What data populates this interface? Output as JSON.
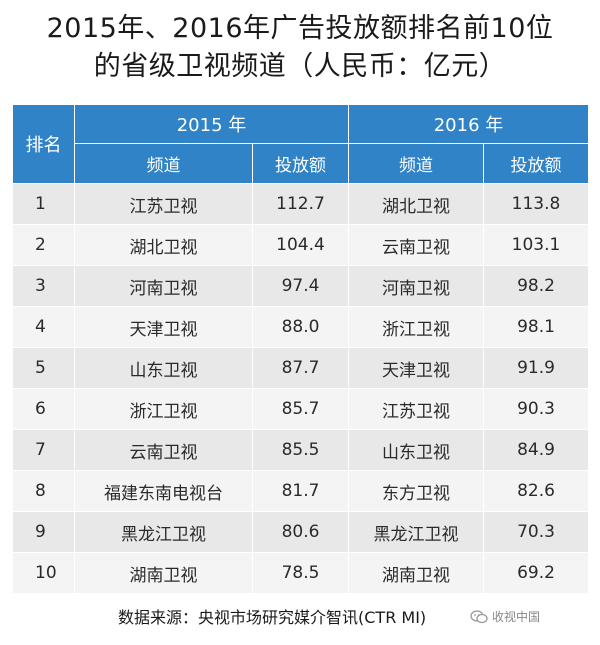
{
  "title": {
    "line1": "2015年、2016年广告投放额排名前10位",
    "line2": "的省级卫视频道（人民币：亿元）"
  },
  "table": {
    "rank_header": "排名",
    "years": [
      "2015 年",
      "2016 年"
    ],
    "channel_header": "频道",
    "amount_header": "投放额",
    "rows": [
      {
        "rank": "1",
        "ch2015": "江苏卫视",
        "amt2015": "112.7",
        "ch2016": "湖北卫视",
        "amt2016": "113.8"
      },
      {
        "rank": "2",
        "ch2015": "湖北卫视",
        "amt2015": "104.4",
        "ch2016": "云南卫视",
        "amt2016": "103.1"
      },
      {
        "rank": "3",
        "ch2015": "河南卫视",
        "amt2015": "97.4",
        "ch2016": "河南卫视",
        "amt2016": "98.2"
      },
      {
        "rank": "4",
        "ch2015": "天津卫视",
        "amt2015": "88.0",
        "ch2016": "浙江卫视",
        "amt2016": "98.1"
      },
      {
        "rank": "5",
        "ch2015": "山东卫视",
        "amt2015": "87.7",
        "ch2016": "天津卫视",
        "amt2016": "91.9"
      },
      {
        "rank": "6",
        "ch2015": "浙江卫视",
        "amt2015": "85.7",
        "ch2016": "江苏卫视",
        "amt2016": "90.3"
      },
      {
        "rank": "7",
        "ch2015": "云南卫视",
        "amt2015": "85.5",
        "ch2016": "山东卫视",
        "amt2016": "84.9"
      },
      {
        "rank": "8",
        "ch2015": "福建东南电视台",
        "amt2015": "81.7",
        "ch2016": "东方卫视",
        "amt2016": "82.6"
      },
      {
        "rank": "9",
        "ch2015": "黑龙江卫视",
        "amt2015": "80.6",
        "ch2016": "黑龙江卫视",
        "amt2016": "70.3"
      },
      {
        "rank": "10",
        "ch2015": "湖南卫视",
        "amt2015": "78.5",
        "ch2016": "湖南卫视",
        "amt2016": "69.2"
      }
    ]
  },
  "source": "数据来源：央视市场研究媒介智讯(CTR MI)",
  "watermark": {
    "text": "收视中国",
    "icon": "wechat-icon"
  },
  "colors": {
    "header_bg": "#2f83c6",
    "row_odd": "#e8e8e8",
    "row_even": "#f4f4f4"
  }
}
